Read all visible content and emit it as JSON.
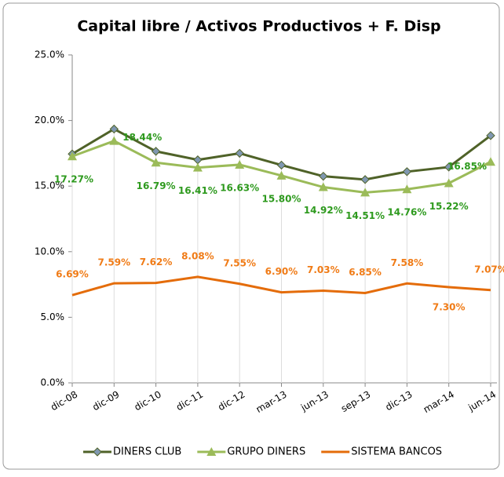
{
  "chart_data": {
    "type": "line",
    "title": "Capital libre / Activos Productivos + F. Disp",
    "categories": [
      "dic-08",
      "dic-09",
      "dic-10",
      "dic-11",
      "dic-12",
      "mar-13",
      "jun-13",
      "sep-13",
      "dic-13",
      "mar-14",
      "jun-14"
    ],
    "series": [
      {
        "name": "DINERS CLUB",
        "color": "#4f6228",
        "marker": "diamond",
        "values": [
          17.45,
          19.35,
          17.65,
          17.0,
          17.5,
          16.6,
          15.75,
          15.5,
          16.1,
          16.45,
          18.85
        ]
      },
      {
        "name": "GRUPO DINERS",
        "color": "#9bbb59",
        "marker": "triangle",
        "values": [
          17.27,
          18.44,
          16.79,
          16.41,
          16.63,
          15.8,
          14.92,
          14.51,
          14.76,
          15.22,
          16.85
        ],
        "value_labels": [
          "17.27%",
          "18.44%",
          "16.79%",
          "16.41%",
          "16.63%",
          "15.80%",
          "14.92%",
          "14.51%",
          "14.76%",
          "15.22%",
          "16.85%"
        ],
        "label_color": "#2e9a1e"
      },
      {
        "name": "SISTEMA BANCOS",
        "color": "#e46c0a",
        "values": [
          6.69,
          7.59,
          7.62,
          8.08,
          7.55,
          6.9,
          7.03,
          6.85,
          7.58,
          7.3,
          7.07
        ],
        "value_labels": [
          "6.69%",
          "7.59%",
          "7.62%",
          "8.08%",
          "7.55%",
          "6.90%",
          "7.03%",
          "6.85%",
          "7.58%",
          "7.30%",
          "7.07%"
        ],
        "label_color": "#f07b16"
      }
    ],
    "ylim": [
      0,
      25
    ],
    "yticks": [
      {
        "value": 0,
        "label": "0.0%"
      },
      {
        "value": 5,
        "label": "5.0%"
      },
      {
        "value": 10,
        "label": "10.0%"
      },
      {
        "value": 15,
        "label": "15.0%"
      },
      {
        "value": 20,
        "label": "20.0%"
      },
      {
        "value": 25,
        "label": "25.0%"
      }
    ],
    "drop_lines": true,
    "legend": "bottom"
  }
}
